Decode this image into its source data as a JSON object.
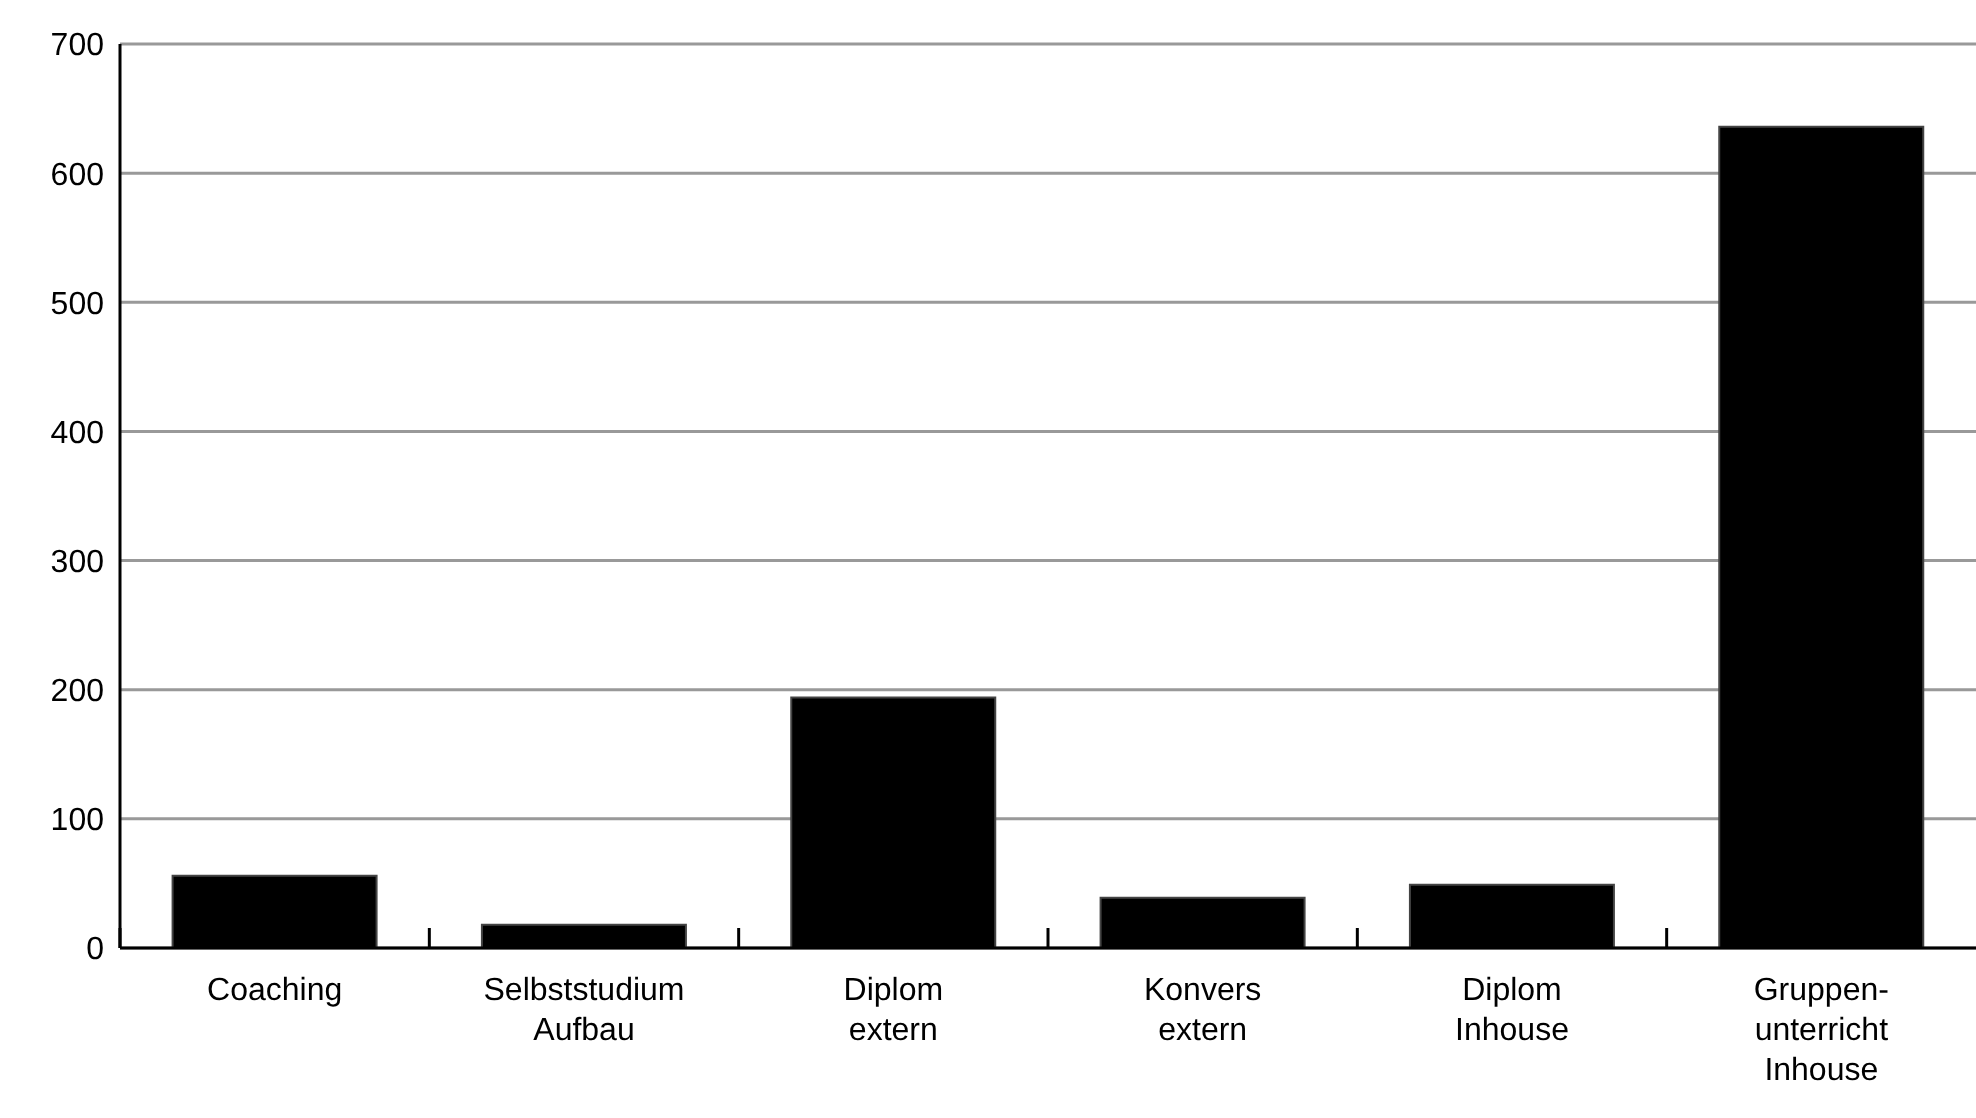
{
  "chart_data": {
    "type": "bar",
    "categories": [
      "Coaching",
      "Selbststudium\nAufbau",
      "Diplom\nextern",
      "Konvers\nextern",
      "Diplom\nInhouse",
      "Gruppen-\nunterricht\nInhouse"
    ],
    "values": [
      56,
      18,
      194,
      39,
      49,
      636
    ],
    "color": "#000000",
    "ylim": [
      0,
      700
    ],
    "yticks": [
      0,
      100,
      200,
      300,
      400,
      500,
      600,
      700
    ],
    "grid": "y"
  }
}
